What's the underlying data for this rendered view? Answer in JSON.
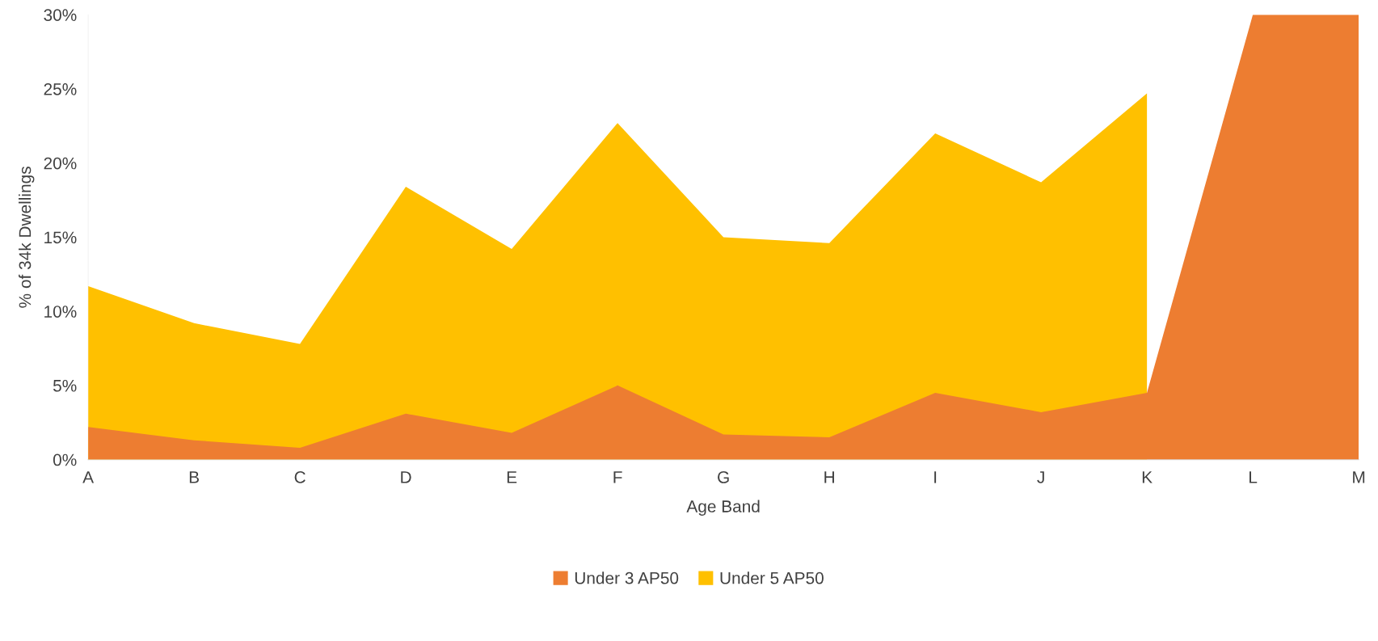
{
  "chart_data": {
    "type": "area",
    "xlabel": "Age Band",
    "ylabel": "% of 34k Dwellings",
    "categories": [
      "A",
      "B",
      "C",
      "D",
      "E",
      "F",
      "G",
      "H",
      "I",
      "J",
      "K",
      "L",
      "M"
    ],
    "series": [
      {
        "name": "Under 3 AP50",
        "color": "#ed7d31",
        "values": [
          2.2,
          1.3,
          0.8,
          3.1,
          1.8,
          5.0,
          1.7,
          1.5,
          4.5,
          3.2,
          4.5,
          30,
          30
        ]
      },
      {
        "name": "Under 5 AP50",
        "color": "#ffc000",
        "values": [
          11.7,
          9.2,
          7.8,
          18.4,
          14.2,
          22.7,
          15.0,
          14.6,
          22.0,
          18.7,
          24.7,
          null,
          null
        ]
      }
    ],
    "ylim": [
      0,
      30
    ],
    "yticks": [
      {
        "value": 0,
        "label": "0%"
      },
      {
        "value": 5,
        "label": "5%"
      },
      {
        "value": 10,
        "label": "10%"
      },
      {
        "value": 15,
        "label": "15%"
      },
      {
        "value": 20,
        "label": "20%"
      },
      {
        "value": 25,
        "label": "25%"
      },
      {
        "value": 30,
        "label": "30%"
      }
    ],
    "grid": false,
    "legend": "bottom"
  }
}
